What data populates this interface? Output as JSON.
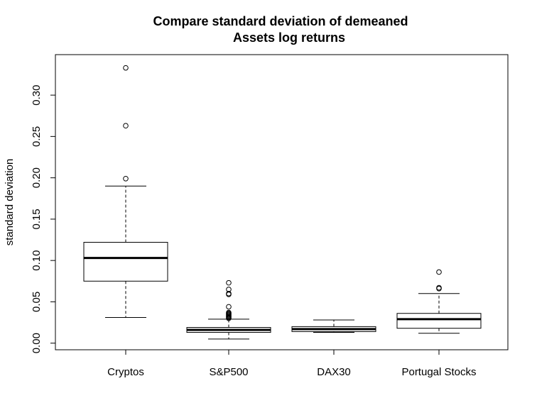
{
  "chart_data": {
    "type": "boxplot",
    "title": [
      "Compare standard deviation of demeaned",
      "Assets log returns"
    ],
    "xlabel": "",
    "ylabel": "standard deviation",
    "ylim": [
      -0.008,
      0.349
    ],
    "y_ticks": [
      "0.00",
      "0.05",
      "0.10",
      "0.15",
      "0.20",
      "0.25",
      "0.30"
    ],
    "y_tick_values": [
      0.0,
      0.05,
      0.1,
      0.15,
      0.2,
      0.25,
      0.3
    ],
    "grid": false,
    "categories": [
      "Cryptos",
      "S&P500",
      "DAX30",
      "Portugal Stocks"
    ],
    "boxes": [
      {
        "name": "Cryptos",
        "whisker_low": 0.031,
        "q1": 0.075,
        "median": 0.103,
        "q3": 0.122,
        "whisker_high": 0.19,
        "outliers": [
          0.199,
          0.263,
          0.333
        ]
      },
      {
        "name": "S&P500",
        "whisker_low": 0.005,
        "q1": 0.013,
        "median": 0.016,
        "q3": 0.019,
        "whisker_high": 0.029,
        "outliers": [
          0.03,
          0.031,
          0.032,
          0.033,
          0.034,
          0.035,
          0.036,
          0.037,
          0.044,
          0.059,
          0.06,
          0.065,
          0.073
        ]
      },
      {
        "name": "DAX30",
        "whisker_low": 0.013,
        "q1": 0.014,
        "median": 0.017,
        "q3": 0.02,
        "whisker_high": 0.028,
        "outliers": []
      },
      {
        "name": "Portugal Stocks",
        "whisker_low": 0.012,
        "q1": 0.018,
        "median": 0.029,
        "q3": 0.036,
        "whisker_high": 0.06,
        "outliers": [
          0.066,
          0.067,
          0.086
        ]
      }
    ]
  }
}
